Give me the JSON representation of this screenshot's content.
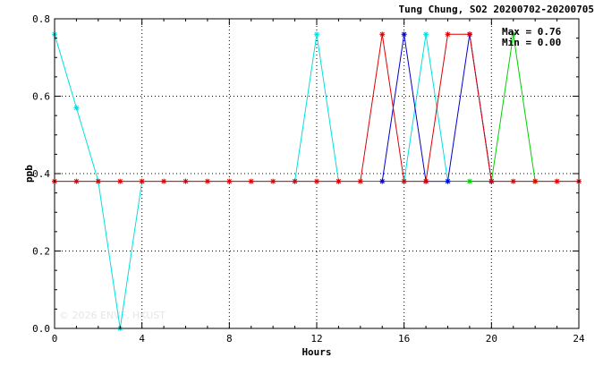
{
  "chart_data": {
    "type": "line",
    "title": "Tung Chung, SO2 20200702-20200705",
    "xlabel": "Hours",
    "ylabel": "ppb",
    "xlim": [
      0,
      24
    ],
    "ylim": [
      0,
      0.8
    ],
    "xticks": [
      "0",
      "4",
      "8",
      "12",
      "16",
      "20",
      "24"
    ],
    "yticks": [
      "0.0",
      "0.2",
      "0.4",
      "0.6",
      "0.8"
    ],
    "grid": true,
    "stats": [
      "Max = 0.76",
      "Min = 0.00"
    ],
    "watermark": "© 2026 ENVF, HKUST",
    "x": [
      0,
      1,
      2,
      3,
      4,
      5,
      6,
      7,
      8,
      9,
      10,
      11,
      12,
      13,
      14,
      15,
      16,
      17,
      18,
      19,
      20,
      21,
      22,
      23,
      24
    ],
    "series": [
      {
        "color": "#00e0e0",
        "values": [
          0.76,
          0.57,
          0.38,
          0.0,
          0.38,
          null,
          null,
          null,
          null,
          null,
          null,
          0.38,
          0.76,
          0.38,
          null,
          null,
          0.38,
          0.76,
          0.38,
          null,
          null,
          null,
          null,
          null,
          null
        ]
      },
      {
        "color": "#00d000",
        "values": [
          null,
          null,
          null,
          null,
          null,
          null,
          null,
          null,
          null,
          null,
          null,
          null,
          null,
          null,
          null,
          null,
          null,
          null,
          null,
          0.38,
          0.38,
          0.76,
          0.38,
          null,
          null
        ]
      },
      {
        "color": "#0000cc",
        "values": [
          null,
          null,
          null,
          null,
          null,
          null,
          null,
          null,
          null,
          null,
          null,
          null,
          null,
          null,
          null,
          0.38,
          0.76,
          0.38,
          0.38,
          0.76,
          0.38,
          null,
          null,
          null,
          null
        ]
      },
      {
        "color": "#dd0000",
        "values": [
          0.38,
          0.38,
          0.38,
          0.38,
          0.38,
          0.38,
          0.38,
          0.38,
          0.38,
          0.38,
          0.38,
          0.38,
          0.38,
          0.38,
          0.38,
          0.76,
          0.38,
          0.38,
          0.76,
          0.76,
          0.38,
          0.38,
          0.38,
          0.38,
          0.38
        ]
      },
      {
        "color": "#555555",
        "values": [
          0.38,
          0.38,
          0.38,
          0.38,
          0.38,
          0.38,
          0.38,
          0.38,
          0.38,
          0.38,
          0.38,
          0.38,
          0.38,
          0.38,
          0.38,
          0.38,
          0.38,
          0.38,
          0.38,
          0.38,
          0.38,
          0.38,
          0.38,
          0.38,
          0.38
        ]
      }
    ]
  }
}
